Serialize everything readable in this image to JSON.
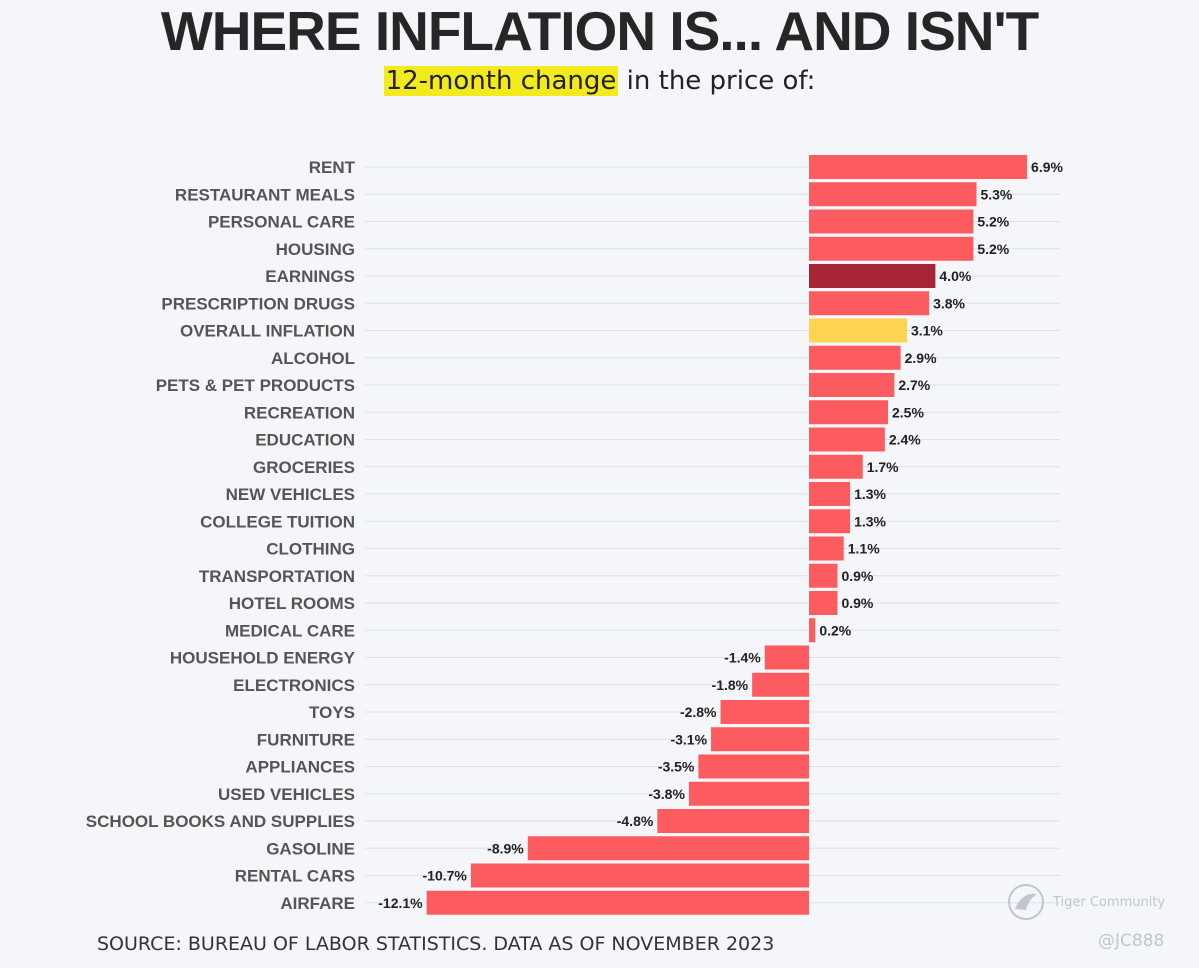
{
  "chart_data": {
    "type": "bar",
    "orientation": "horizontal",
    "title": "WHERE INFLATION IS... AND ISN'T",
    "subtitle_highlight": "12-month change",
    "subtitle_rest": " in the price of:",
    "categories": [
      "RENT",
      "RESTAURANT MEALS",
      "PERSONAL CARE",
      "HOUSING",
      "EARNINGS",
      "PRESCRIPTION DRUGS",
      "OVERALL INFLATION",
      "ALCOHOL",
      "PETS & PET PRODUCTS",
      "RECREATION",
      "EDUCATION",
      "GROCERIES",
      "NEW VEHICLES",
      "COLLEGE TUITION",
      "CLOTHING",
      "TRANSPORTATION",
      "HOTEL ROOMS",
      "MEDICAL CARE",
      "HOUSEHOLD ENERGY",
      "ELECTRONICS",
      "TOYS",
      "FURNITURE",
      "APPLIANCES",
      "USED VEHICLES",
      "SCHOOL BOOKS AND SUPPLIES",
      "GASOLINE",
      "RENTAL CARS",
      "AIRFARE"
    ],
    "values": [
      6.9,
      5.3,
      5.2,
      5.2,
      4.0,
      3.8,
      3.1,
      2.9,
      2.7,
      2.5,
      2.4,
      1.7,
      1.3,
      1.3,
      1.1,
      0.9,
      0.9,
      0.2,
      -1.4,
      -1.8,
      -2.8,
      -3.1,
      -3.5,
      -3.8,
      -4.8,
      -8.9,
      -10.7,
      -12.1
    ],
    "value_labels": [
      "6.9%",
      "5.3%",
      "5.2%",
      "5.2%",
      "4.0%",
      "3.8%",
      "3.1%",
      "2.9%",
      "2.7%",
      "2.5%",
      "2.4%",
      "1.7%",
      "1.3%",
      "1.3%",
      "1.1%",
      "0.9%",
      "0.9%",
      "0.2%",
      "-1.4%",
      "-1.8%",
      "-2.8%",
      "-3.1%",
      "-3.5%",
      "-3.8%",
      "-4.8%",
      "-8.9%",
      "-10.7%",
      "-12.1%"
    ],
    "xlim": [
      -12.1,
      6.9
    ],
    "grid": true,
    "colors": {
      "default": "#fc5c5f",
      "earnings": "#a82537",
      "overall": "#fdd44f",
      "highlight": "#f2ea1d",
      "grid": "#dde1e6"
    },
    "bar_colors": [
      "#fc5c5f",
      "#fc5c5f",
      "#fc5c5f",
      "#fc5c5f",
      "#a82537",
      "#fc5c5f",
      "#fdd44f",
      "#fc5c5f",
      "#fc5c5f",
      "#fc5c5f",
      "#fc5c5f",
      "#fc5c5f",
      "#fc5c5f",
      "#fc5c5f",
      "#fc5c5f",
      "#fc5c5f",
      "#fc5c5f",
      "#fc5c5f",
      "#fc5c5f",
      "#fc5c5f",
      "#fc5c5f",
      "#fc5c5f",
      "#fc5c5f",
      "#fc5c5f",
      "#fc5c5f",
      "#fc5c5f",
      "#fc5c5f",
      "#fc5c5f"
    ]
  },
  "source": "SOURCE: BUREAU OF LABOR STATISTICS. DATA AS OF NOVEMBER 2023",
  "watermark": {
    "name": "Tiger Community",
    "user": "@JC888",
    "icon": "tiger-logo-icon"
  }
}
